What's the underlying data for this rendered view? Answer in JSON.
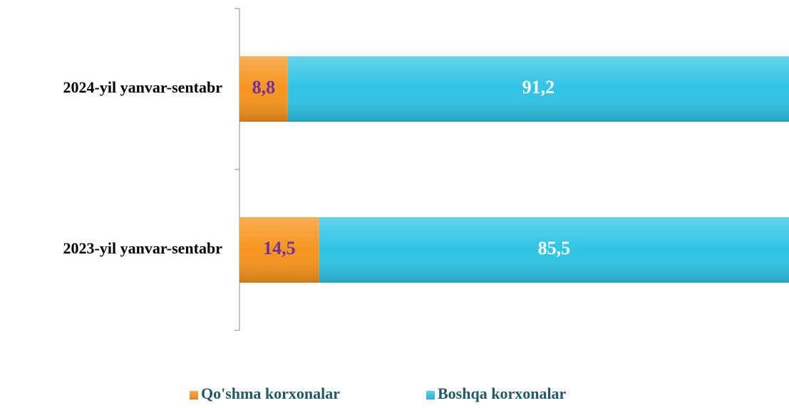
{
  "chart_data": {
    "type": "stacked-barh",
    "categories": [
      "2024-yil yanvar-sentabr",
      "2023-yil yanvar-sentabr"
    ],
    "series": [
      {
        "name": "Qo'shma korxonalar",
        "color": "#f7941d",
        "label_color": "#7030a0",
        "values": [
          8.8,
          14.5
        ],
        "value_labels": [
          "8,8",
          "14,5"
        ]
      },
      {
        "name": "Boshqa korxonalar",
        "color": "#2fc4e6",
        "label_color": "#ffffff",
        "values": [
          91.2,
          85.5
        ],
        "value_labels": [
          "91,2",
          "85,5"
        ]
      }
    ],
    "xlim": [
      0,
      100
    ],
    "legend": "bottom"
  }
}
